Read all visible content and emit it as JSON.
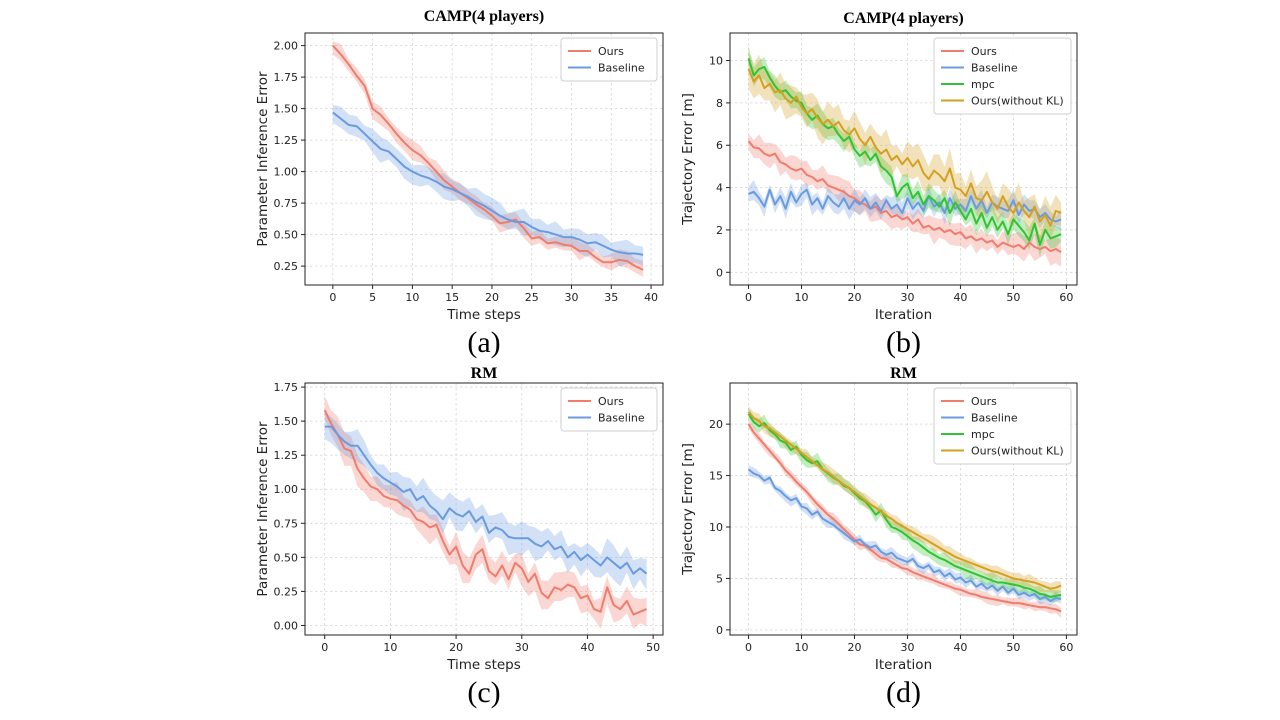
{
  "colors": {
    "Ours": "#f07c6c",
    "Baseline": "#6a9be0",
    "mpc": "#33c233",
    "Ours(without KL)": "#d4a020"
  },
  "chart_data": [
    {
      "type": "line",
      "panel_label": "(a)",
      "title": "CAMP(4 players)",
      "xlabel": "Time steps",
      "ylabel": "Parameter Inference Error",
      "xlim": [
        -3.5,
        41.5
      ],
      "ylim": [
        0.1,
        2.1
      ],
      "xticks": [
        0,
        5,
        10,
        15,
        20,
        25,
        30,
        35,
        40
      ],
      "yticks": [
        0.25,
        0.5,
        0.75,
        1.0,
        1.25,
        1.5,
        1.75,
        2.0
      ],
      "ytick_labels": [
        "0.25",
        "0.50",
        "0.75",
        "1.00",
        "1.25",
        "1.50",
        "1.75",
        "2.00"
      ],
      "grid": true,
      "legend": "top-right",
      "series": [
        {
          "name": "Ours",
          "x_start": 0,
          "x_step": 1,
          "values": [
            2.0,
            1.93,
            1.85,
            1.76,
            1.68,
            1.5,
            1.45,
            1.38,
            1.3,
            1.23,
            1.17,
            1.13,
            1.07,
            1.0,
            0.93,
            0.88,
            0.83,
            0.79,
            0.74,
            0.7,
            0.65,
            0.59,
            0.6,
            0.62,
            0.55,
            0.47,
            0.48,
            0.43,
            0.44,
            0.42,
            0.41,
            0.37,
            0.37,
            0.32,
            0.28,
            0.28,
            0.3,
            0.29,
            0.25,
            0.22
          ],
          "spread": 0.06
        },
        {
          "name": "Baseline",
          "x_start": 0,
          "x_step": 1,
          "values": [
            1.47,
            1.42,
            1.37,
            1.36,
            1.3,
            1.24,
            1.18,
            1.16,
            1.1,
            1.04,
            1.0,
            0.97,
            0.95,
            0.92,
            0.88,
            0.86,
            0.83,
            0.8,
            0.76,
            0.73,
            0.69,
            0.65,
            0.62,
            0.6,
            0.6,
            0.56,
            0.53,
            0.52,
            0.5,
            0.48,
            0.48,
            0.46,
            0.43,
            0.44,
            0.41,
            0.38,
            0.36,
            0.35,
            0.35,
            0.34
          ],
          "spread": 0.08
        }
      ]
    },
    {
      "type": "line",
      "panel_label": "(b)",
      "title": "CAMP(4 players)",
      "xlabel": "Iteration",
      "ylabel": "Trajectory Error [m]",
      "xlim": [
        -3.5,
        62
      ],
      "ylim": [
        -0.6,
        11.3
      ],
      "xticks": [
        0,
        10,
        20,
        30,
        40,
        50,
        60
      ],
      "yticks": [
        0,
        2,
        4,
        6,
        8,
        10
      ],
      "ytick_labels": [
        "0",
        "2",
        "4",
        "6",
        "8",
        "10"
      ],
      "grid": true,
      "legend": "top-right",
      "series": [
        {
          "name": "Ours",
          "x_start": 0,
          "x_step": 1,
          "values": [
            6.2,
            5.9,
            5.85,
            5.6,
            5.5,
            5.6,
            5.2,
            5.1,
            4.9,
            4.8,
            4.9,
            4.6,
            4.5,
            4.3,
            4.4,
            4.1,
            4.0,
            3.9,
            3.8,
            3.6,
            3.5,
            3.3,
            3.2,
            3.0,
            3.1,
            2.8,
            2.9,
            2.6,
            2.7,
            2.5,
            2.6,
            2.3,
            2.5,
            2.1,
            2.2,
            2.0,
            2.1,
            1.9,
            2.0,
            1.8,
            1.9,
            1.6,
            1.7,
            1.5,
            1.6,
            1.4,
            1.5,
            1.2,
            1.4,
            1.3,
            1.2,
            1.3,
            1.1,
            1.4,
            1.2,
            1.1,
            1.2,
            1.0,
            1.1,
            0.95
          ],
          "spread": 0.5
        },
        {
          "name": "Baseline",
          "x_start": 0,
          "x_step": 1,
          "values": [
            3.7,
            3.8,
            3.5,
            3.1,
            3.9,
            3.2,
            3.6,
            3.0,
            3.8,
            3.3,
            3.7,
            3.9,
            3.2,
            3.5,
            3.0,
            3.6,
            3.3,
            3.1,
            3.5,
            3.0,
            3.4,
            3.2,
            3.5,
            3.0,
            3.3,
            2.9,
            3.4,
            3.0,
            3.2,
            2.8,
            3.5,
            3.0,
            3.3,
            2.9,
            3.6,
            3.1,
            3.3,
            2.8,
            3.5,
            3.0,
            3.2,
            2.9,
            3.6,
            3.0,
            3.4,
            2.8,
            3.3,
            3.1,
            3.0,
            2.9,
            3.4,
            2.7,
            3.2,
            2.9,
            3.0,
            2.6,
            2.8,
            2.5,
            2.4,
            2.5
          ],
          "spread": 0.4
        },
        {
          "name": "mpc",
          "x_start": 0,
          "x_step": 1,
          "values": [
            10.1,
            9.3,
            9.6,
            9.7,
            9.2,
            8.8,
            8.5,
            8.6,
            8.3,
            8.1,
            8.0,
            7.5,
            7.2,
            7.4,
            7.0,
            6.8,
            6.9,
            6.5,
            6.2,
            6.4,
            5.8,
            5.5,
            5.7,
            5.3,
            5.6,
            5.0,
            4.8,
            4.5,
            3.6,
            4.0,
            4.2,
            3.5,
            3.8,
            3.2,
            3.6,
            3.4,
            3.1,
            3.5,
            2.8,
            3.3,
            2.9,
            2.5,
            3.0,
            2.3,
            2.8,
            2.1,
            2.6,
            2.0,
            2.4,
            1.8,
            2.5,
            2.2,
            1.9,
            1.5,
            2.3,
            1.3,
            2.0,
            1.6,
            1.7,
            1.8
          ],
          "spread": 0.45
        },
        {
          "name": "Ours(without KL)",
          "x_start": 0,
          "x_step": 1,
          "values": [
            9.6,
            9.0,
            9.3,
            8.7,
            8.9,
            8.5,
            8.6,
            8.2,
            8.0,
            8.3,
            7.8,
            7.5,
            7.7,
            7.3,
            7.0,
            7.2,
            6.9,
            7.1,
            6.7,
            6.5,
            6.8,
            6.3,
            6.0,
            6.4,
            5.9,
            5.6,
            5.8,
            5.3,
            5.5,
            5.1,
            5.4,
            5.0,
            5.3,
            4.7,
            4.4,
            4.8,
            4.6,
            4.3,
            4.9,
            4.0,
            3.9,
            3.6,
            4.2,
            3.5,
            3.4,
            3.8,
            3.3,
            3.0,
            3.6,
            3.1,
            2.8,
            3.3,
            2.9,
            2.6,
            3.1,
            2.4,
            2.7,
            2.2,
            2.9,
            2.8
          ],
          "spread": 0.7
        }
      ]
    },
    {
      "type": "line",
      "panel_label": "(c)",
      "title": "RM",
      "xlabel": "Time steps",
      "ylabel": "Parameter Inference Error",
      "xlim": [
        -3,
        51.5
      ],
      "ylim": [
        -0.07,
        1.78
      ],
      "xticks": [
        0,
        10,
        20,
        30,
        40,
        50
      ],
      "yticks": [
        0.0,
        0.25,
        0.5,
        0.75,
        1.0,
        1.25,
        1.5,
        1.75
      ],
      "ytick_labels": [
        "0.00",
        "0.25",
        "0.50",
        "0.75",
        "1.00",
        "1.25",
        "1.50",
        "1.75"
      ],
      "grid": true,
      "legend": "top-right",
      "series": [
        {
          "name": "Ours",
          "x_start": 0,
          "x_step": 1,
          "values": [
            1.58,
            1.48,
            1.4,
            1.3,
            1.28,
            1.15,
            1.08,
            1.02,
            1.0,
            0.95,
            0.93,
            0.92,
            0.88,
            0.85,
            0.78,
            0.76,
            0.72,
            0.74,
            0.62,
            0.52,
            0.58,
            0.44,
            0.38,
            0.52,
            0.56,
            0.4,
            0.36,
            0.44,
            0.34,
            0.46,
            0.42,
            0.32,
            0.38,
            0.24,
            0.2,
            0.28,
            0.26,
            0.3,
            0.28,
            0.2,
            0.22,
            0.12,
            0.1,
            0.28,
            0.15,
            0.12,
            0.18,
            0.08,
            0.1,
            0.12
          ],
          "spread": 0.1
        },
        {
          "name": "Baseline",
          "x_start": 0,
          "x_step": 1,
          "values": [
            1.46,
            1.46,
            1.4,
            1.35,
            1.32,
            1.32,
            1.25,
            1.18,
            1.12,
            1.08,
            1.05,
            1.02,
            0.98,
            1.0,
            0.92,
            0.95,
            0.88,
            0.84,
            0.78,
            0.86,
            0.82,
            0.8,
            0.84,
            0.76,
            0.8,
            0.68,
            0.72,
            0.7,
            0.65,
            0.64,
            0.64,
            0.64,
            0.6,
            0.58,
            0.62,
            0.56,
            0.58,
            0.5,
            0.54,
            0.48,
            0.52,
            0.48,
            0.44,
            0.5,
            0.46,
            0.42,
            0.46,
            0.38,
            0.42,
            0.38
          ],
          "spread": 0.1
        }
      ]
    },
    {
      "type": "line",
      "panel_label": "(d)",
      "title": "RM",
      "xlabel": "Iteration",
      "ylabel": "Trajectory Error [m]",
      "xlim": [
        -3.5,
        62
      ],
      "ylim": [
        -0.5,
        24
      ],
      "xticks": [
        0,
        10,
        20,
        30,
        40,
        50,
        60
      ],
      "yticks": [
        0,
        5,
        10,
        15,
        20
      ],
      "ytick_labels": [
        "0",
        "5",
        "10",
        "15",
        "20"
      ],
      "grid": true,
      "legend": "top-right",
      "series": [
        {
          "name": "Ours",
          "x_start": 0,
          "x_step": 1,
          "values": [
            20.0,
            19.2,
            18.6,
            18.0,
            17.4,
            16.8,
            16.2,
            15.5,
            15.0,
            14.4,
            13.9,
            13.4,
            12.8,
            12.2,
            11.7,
            11.2,
            10.8,
            10.3,
            9.8,
            9.3,
            8.8,
            8.3,
            8.2,
            7.8,
            7.4,
            7.0,
            6.9,
            6.6,
            6.3,
            6.0,
            5.9,
            5.6,
            5.4,
            5.2,
            5.0,
            4.8,
            4.6,
            4.4,
            4.2,
            4.0,
            3.9,
            3.7,
            3.5,
            3.4,
            3.2,
            3.1,
            3.0,
            2.9,
            2.8,
            2.7,
            2.6,
            2.6,
            2.5,
            2.4,
            2.3,
            2.2,
            2.2,
            2.1,
            2.0,
            1.8
          ],
          "spread": 0.45
        },
        {
          "name": "Baseline",
          "x_start": 0,
          "x_step": 1,
          "values": [
            15.6,
            15.2,
            15.0,
            14.5,
            14.8,
            13.8,
            13.5,
            13.0,
            12.6,
            12.8,
            12.0,
            11.8,
            11.2,
            11.5,
            10.8,
            10.5,
            10.2,
            9.8,
            9.4,
            9.0,
            8.6,
            8.8,
            8.3,
            8.0,
            8.2,
            7.6,
            7.3,
            7.5,
            7.0,
            6.8,
            6.6,
            6.9,
            6.2,
            6.0,
            6.3,
            5.6,
            5.8,
            5.2,
            5.5,
            4.9,
            5.1,
            4.6,
            4.8,
            4.2,
            4.5,
            4.0,
            4.3,
            3.8,
            4.2,
            3.6,
            4.0,
            3.4,
            3.6,
            3.3,
            3.5,
            3.0,
            3.2,
            2.8,
            3.1,
            3.0
          ],
          "spread": 0.45
        },
        {
          "name": "mpc",
          "x_start": 0,
          "x_step": 1,
          "values": [
            21.0,
            20.2,
            19.8,
            20.1,
            19.4,
            19.0,
            18.4,
            18.2,
            17.5,
            17.8,
            17.0,
            16.5,
            16.2,
            16.4,
            15.6,
            15.2,
            14.8,
            14.5,
            14.0,
            13.8,
            13.3,
            12.8,
            12.5,
            11.9,
            11.2,
            11.6,
            10.7,
            10.0,
            9.8,
            9.5,
            9.1,
            8.7,
            8.4,
            8.0,
            7.6,
            7.3,
            7.0,
            6.8,
            6.5,
            6.2,
            6.0,
            5.8,
            5.6,
            5.4,
            5.2,
            5.0,
            4.8,
            4.6,
            4.6,
            4.5,
            4.4,
            4.3,
            4.1,
            4.0,
            3.8,
            3.5,
            3.4,
            3.2,
            3.3,
            3.4
          ],
          "spread": 0.6
        },
        {
          "name": "Ours(without KL)",
          "x_start": 0,
          "x_step": 1,
          "values": [
            21.2,
            20.6,
            20.3,
            19.8,
            19.6,
            19.2,
            18.8,
            18.4,
            18.0,
            17.6,
            17.2,
            16.8,
            16.4,
            16.0,
            15.6,
            15.3,
            14.9,
            14.5,
            14.1,
            13.8,
            13.4,
            13.0,
            12.6,
            12.2,
            11.9,
            11.5,
            11.1,
            10.8,
            10.4,
            10.1,
            9.8,
            9.5,
            9.2,
            8.9,
            8.6,
            8.3,
            8.0,
            7.7,
            7.4,
            7.1,
            6.9,
            6.7,
            6.5,
            6.3,
            6.1,
            5.9,
            5.7,
            5.6,
            5.4,
            5.2,
            5.0,
            4.9,
            4.8,
            4.7,
            4.6,
            4.4,
            4.2,
            4.0,
            4.1,
            4.3
          ],
          "spread": 0.55
        }
      ]
    }
  ]
}
